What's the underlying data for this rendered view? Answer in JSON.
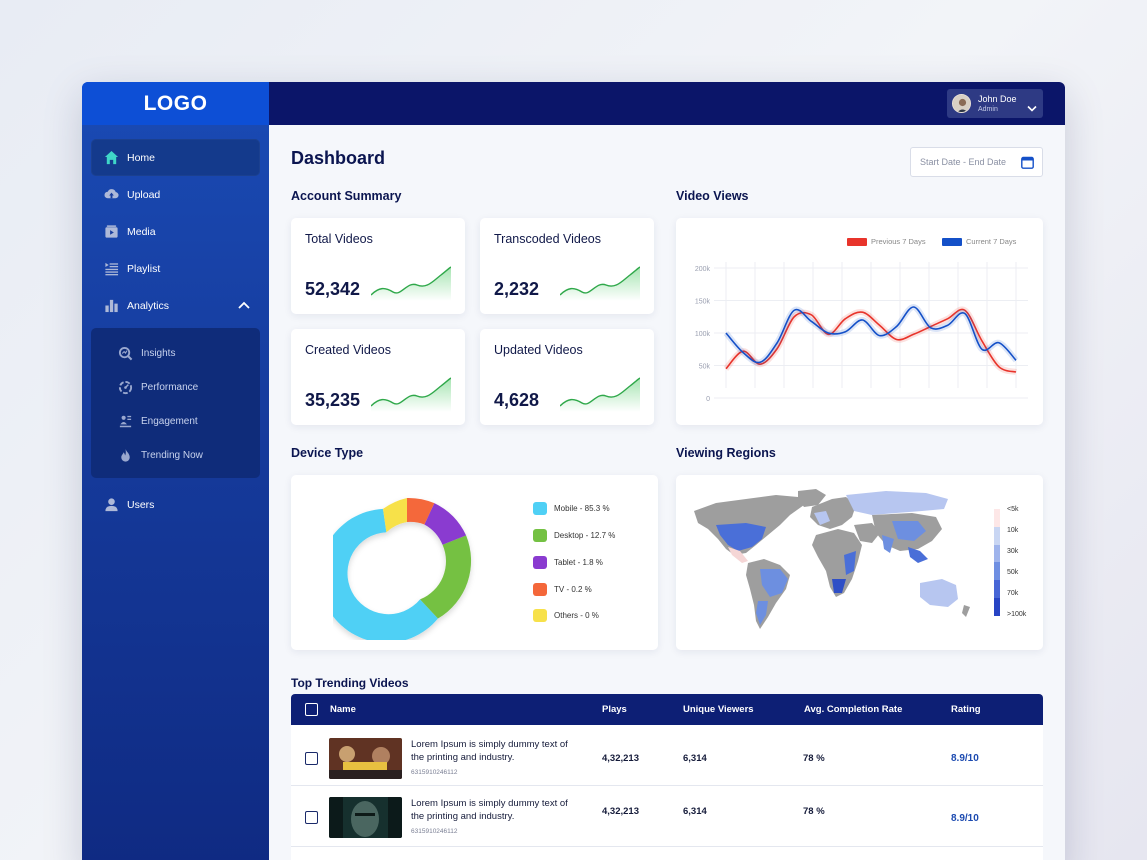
{
  "logo": "LOGO",
  "user": {
    "name": "John Doe",
    "role": "Admin"
  },
  "sidebar": {
    "items": [
      {
        "label": "Home",
        "icon": "home-icon",
        "active": true
      },
      {
        "label": "Upload",
        "icon": "upload-icon"
      },
      {
        "label": "Media",
        "icon": "media-icon"
      },
      {
        "label": "Playlist",
        "icon": "playlist-icon"
      },
      {
        "label": "Analytics",
        "icon": "analytics-icon",
        "expanded": true
      },
      {
        "label": "Users",
        "icon": "user-icon"
      }
    ],
    "analytics_sub": [
      {
        "label": "Insights",
        "icon": "insights-icon"
      },
      {
        "label": "Performance",
        "icon": "performance-icon"
      },
      {
        "label": "Engagement",
        "icon": "engagement-icon"
      },
      {
        "label": "Trending Now",
        "icon": "flame-icon"
      }
    ]
  },
  "page": {
    "title": "Dashboard",
    "date_range_placeholder": "Start Date - End Date"
  },
  "account_summary": {
    "title": "Account Summary",
    "cards": [
      {
        "label": "Total Videos",
        "value": "52,342"
      },
      {
        "label": "Transcoded Videos",
        "value": "2,232"
      },
      {
        "label": "Created Videos",
        "value": "35,235"
      },
      {
        "label": "Updated Videos",
        "value": "4,628"
      }
    ]
  },
  "video_views": {
    "title": "Video Views",
    "legend": {
      "previous": "Previous 7 Days",
      "current": "Current 7 Days"
    },
    "colors": {
      "previous": "#e8342b",
      "current": "#1450c8"
    }
  },
  "chart_data": {
    "type": "line",
    "ylim": [
      0,
      200000
    ],
    "yticks": [
      "200k",
      "150k",
      "100k",
      "50k",
      "0"
    ],
    "series": [
      {
        "name": "Previous 7 Days",
        "values": [
          45000,
          72000,
          52000,
          76000,
          125000,
          128000,
          98000,
          122000,
          132000,
          112000,
          90000,
          98000,
          110000,
          122000,
          135000,
          88000,
          48000,
          40000
        ]
      },
      {
        "name": "Current 7 Days",
        "values": [
          100000,
          70000,
          55000,
          85000,
          135000,
          118000,
          100000,
          102000,
          120000,
          96000,
          110000,
          140000,
          108000,
          112000,
          130000,
          75000,
          85000,
          58000
        ]
      }
    ]
  },
  "device_type": {
    "title": "Device Type",
    "items": [
      {
        "label": "Mobile - 85.3 %",
        "color": "#4fd0f5"
      },
      {
        "label": "Desktop - 12.7 %",
        "color": "#74c143"
      },
      {
        "label": "Tablet - 1.8 %",
        "color": "#8a3bd0"
      },
      {
        "label": "TV - 0.2 %",
        "color": "#f4673a"
      },
      {
        "label": "Others - 0 %",
        "color": "#f7e14a"
      }
    ]
  },
  "viewing_regions": {
    "title": "Viewing Regions",
    "scale": [
      "<5k",
      "10k",
      "30k",
      "50k",
      "70k",
      ">100k"
    ]
  },
  "trending": {
    "title": "Top Trending Videos",
    "columns": [
      "Name",
      "Plays",
      "Unique Viewers",
      "Avg. Completion Rate",
      "Rating"
    ],
    "rows": [
      {
        "title": "Lorem Ipsum is simply dummy text of the printing and industry.",
        "id": "6315910246112",
        "plays": "4,32,213",
        "viewers": "6,314",
        "completion": "78 %",
        "rating": "8.9/10"
      },
      {
        "title": "Lorem Ipsum is simply dummy text of the printing and industry.",
        "id": "6315910246112",
        "plays": "4,32,213",
        "viewers": "6,314",
        "completion": "78 %",
        "rating": "8.9/10"
      }
    ]
  }
}
